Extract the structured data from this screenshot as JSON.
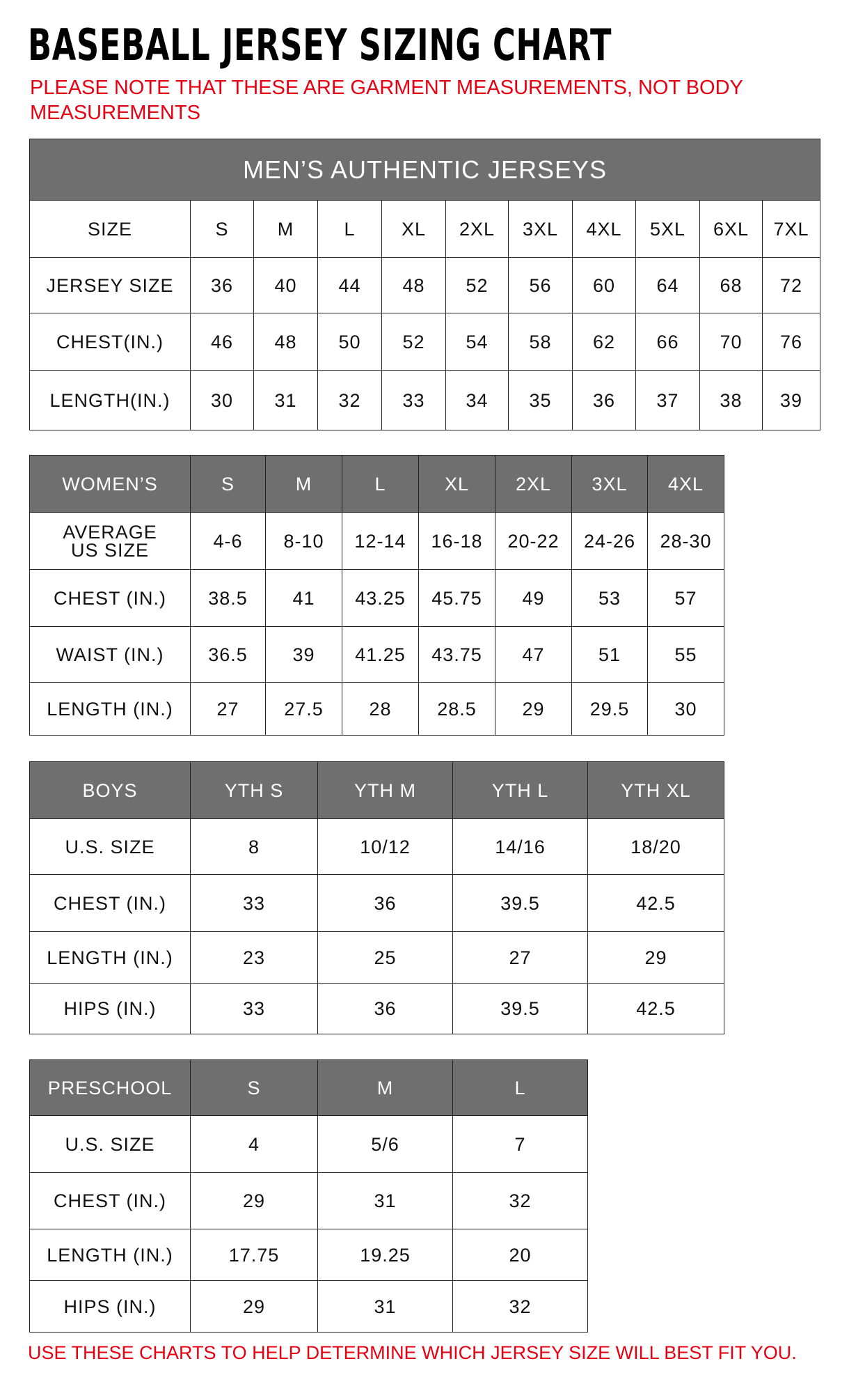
{
  "title": "BASEBALL JERSEY SIZING CHART",
  "note": "PLEASE NOTE THAT THESE ARE GARMENT MEASUREMENTS, NOT BODY MEASUREMENTS",
  "footer": "USE THESE CHARTS TO HELP DETERMINE WHICH JERSEY SIZE WILL BEST FIT YOU.",
  "colors": {
    "header_bg": "#6f6f6f",
    "note_red": "#e60012"
  },
  "tables": [
    {
      "caption": "MEN’S AUTHENTIC JERSEYS",
      "header": [
        "SIZE",
        "S",
        "M",
        "L",
        "XL",
        "2XL",
        "3XL",
        "4XL",
        "5XL",
        "6XL",
        "7XL"
      ],
      "header_is_gray": false,
      "rows": [
        [
          "JERSEY SIZE",
          "36",
          "40",
          "44",
          "48",
          "52",
          "56",
          "60",
          "64",
          "68",
          "72"
        ],
        [
          "CHEST(IN.)",
          "46",
          "48",
          "50",
          "52",
          "54",
          "58",
          "62",
          "66",
          "70",
          "76"
        ],
        [
          "LENGTH(IN.)",
          "30",
          "31",
          "32",
          "33",
          "34",
          "35",
          "36",
          "37",
          "38",
          "39"
        ]
      ]
    },
    {
      "header": [
        "WOMEN’S",
        "S",
        "M",
        "L",
        "XL",
        "2XL",
        "3XL",
        "4XL"
      ],
      "header_is_gray": true,
      "rows": [
        [
          "AVERAGE US SIZE",
          "4-6",
          "8-10",
          "12-14",
          "16-18",
          "20-22",
          "24-26",
          "28-30"
        ],
        [
          "CHEST (IN.)",
          "38.5",
          "41",
          "43.25",
          "45.75",
          "49",
          "53",
          "57"
        ],
        [
          "WAIST (IN.)",
          "36.5",
          "39",
          "41.25",
          "43.75",
          "47",
          "51",
          "55"
        ],
        [
          "LENGTH (IN.)",
          "27",
          "27.5",
          "28",
          "28.5",
          "29",
          "29.5",
          "30"
        ]
      ]
    },
    {
      "header": [
        "BOYS",
        "YTH S",
        "YTH M",
        "YTH L",
        "YTH XL"
      ],
      "header_is_gray": true,
      "rows": [
        [
          "U.S. SIZE",
          "8",
          "10/12",
          "14/16",
          "18/20"
        ],
        [
          "CHEST (IN.)",
          "33",
          "36",
          "39.5",
          "42.5"
        ],
        [
          "LENGTH (IN.)",
          "23",
          "25",
          "27",
          "29"
        ],
        [
          "HIPS (IN.)",
          "33",
          "36",
          "39.5",
          "42.5"
        ]
      ]
    },
    {
      "header": [
        "PRESCHOOL",
        "S",
        "M",
        "L"
      ],
      "header_is_gray": true,
      "rows": [
        [
          "U.S. SIZE",
          "4",
          "5/6",
          "7"
        ],
        [
          "CHEST (IN.)",
          "29",
          "31",
          "32"
        ],
        [
          "LENGTH (IN.)",
          "17.75",
          "19.25",
          "20"
        ],
        [
          "HIPS (IN.)",
          "29",
          "31",
          "32"
        ]
      ]
    }
  ]
}
